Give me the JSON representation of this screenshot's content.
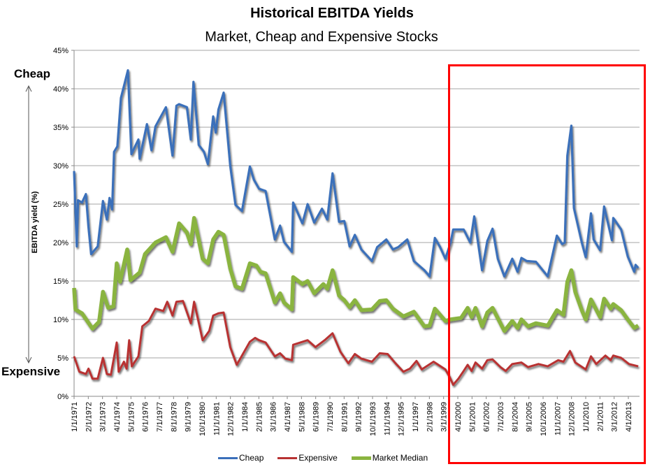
{
  "chart_data": {
    "type": "line",
    "title": "Historical EBITDA Yields",
    "subtitle": "Market, Cheap and Expensive Stocks",
    "ylabel": "EBITDA yield (%)",
    "ylim": [
      0,
      45
    ],
    "yticks": [
      "0%",
      "5%",
      "10%",
      "15%",
      "20%",
      "25%",
      "30%",
      "35%",
      "40%",
      "45%"
    ],
    "xlim": [
      1971.0,
      2014.0
    ],
    "grid": true,
    "legend_position": "bottom",
    "annotations": {
      "top": "Cheap",
      "bottom": "Expensive"
    },
    "xtick_labels": [
      "1/1/1971",
      "2/1/1972",
      "3/1/1973",
      "4/1/1974",
      "5/1/1975",
      "6/1/1976",
      "7/1/1977",
      "8/1/1978",
      "9/1/1979",
      "10/1/1980",
      "11/1/1981",
      "12/1/1982",
      "1/1/1984",
      "2/1/1985",
      "3/1/1986",
      "4/1/1987",
      "5/1/1988",
      "6/1/1989",
      "7/1/1990",
      "8/1/1991",
      "9/1/1992",
      "10/1/1993",
      "11/1/1994",
      "12/1/1995",
      "1/1/1997",
      "2/1/1998",
      "3/1/1999",
      "4/1/2000",
      "5/1/2001",
      "6/1/2002",
      "7/1/2003",
      "8/1/2004",
      "9/1/2005",
      "10/1/2006",
      "11/1/2007",
      "12/1/2008",
      "1/1/2010",
      "2/1/2011",
      "3/1/2012",
      "4/1/2013"
    ],
    "series": [
      {
        "name": "Cheap",
        "color": "#3a6fba",
        "x": [
          1971.0,
          1971.2,
          1971.3,
          1971.6,
          1971.9,
          1972.1,
          1972.3,
          1972.8,
          1973.2,
          1973.5,
          1973.7,
          1973.9,
          1974.05,
          1974.3,
          1974.57,
          1975.1,
          1975.37,
          1975.9,
          1976.0,
          1976.55,
          1976.9,
          1977.2,
          1978.0,
          1978.5,
          1978.8,
          1979.0,
          1979.6,
          1979.9,
          1980.1,
          1980.5,
          1980.9,
          1981.2,
          1981.6,
          1981.8,
          1982.0,
          1982.4,
          1982.9,
          1983.3,
          1983.8,
          1984.4,
          1984.7,
          1985.1,
          1985.6,
          1986.3,
          1986.7,
          1987.0,
          1987.6,
          1987.7,
          1988.4,
          1988.8,
          1989.3,
          1989.9,
          1990.3,
          1990.7,
          1991.2,
          1991.6,
          1992.0,
          1992.4,
          1992.9,
          1993.7,
          1994.1,
          1994.8,
          1995.3,
          1995.7,
          1996.4,
          1996.9,
          1997.7,
          1998.1,
          1998.5,
          1998.9,
          1999.3,
          1999.7,
          1999.9,
          2000.7,
          2001.2,
          2001.5,
          2002.1,
          2002.5,
          2002.9,
          2003.3,
          2003.8,
          2004.4,
          2004.8,
          2005.1,
          2005.5,
          2006.2,
          2007.1,
          2007.8,
          2008.2,
          2008.4,
          2008.6,
          2008.9,
          2009.1,
          2009.7,
          2010.0,
          2010.4,
          2010.6,
          2011.1,
          2011.4,
          2012.0,
          2012.1,
          2012.7,
          2013.2,
          2013.7,
          2013.8,
          2014.0
        ],
        "values": [
          29.3,
          19.5,
          25.5,
          25.2,
          26.3,
          22.0,
          18.5,
          19.5,
          25.4,
          23.0,
          25.8,
          24.3,
          31.8,
          32.5,
          38.8,
          42.4,
          31.5,
          33.4,
          30.9,
          35.4,
          32.0,
          35.1,
          37.6,
          31.3,
          37.8,
          38.0,
          37.6,
          33.4,
          40.9,
          32.7,
          31.8,
          30.2,
          36.4,
          34.3,
          37.3,
          39.5,
          30.0,
          24.9,
          24.1,
          29.9,
          28.2,
          27.0,
          26.7,
          20.4,
          22.2,
          20.1,
          18.8,
          25.2,
          22.5,
          25.0,
          22.6,
          24.4,
          23.0,
          29.0,
          22.7,
          22.8,
          19.5,
          21.0,
          19.1,
          17.6,
          19.4,
          20.4,
          19.1,
          19.4,
          20.4,
          17.6,
          16.4,
          15.6,
          20.6,
          19.4,
          17.9,
          20.0,
          21.7,
          21.7,
          20.0,
          23.4,
          16.4,
          20.2,
          21.8,
          17.9,
          15.6,
          17.9,
          16.2,
          18.0,
          17.6,
          17.5,
          15.6,
          20.9,
          19.8,
          20.0,
          31.3,
          35.2,
          24.5,
          20.0,
          18.1,
          23.8,
          20.4,
          19.0,
          24.7,
          20.3,
          23.2,
          21.7,
          18.2,
          16.2,
          17.1,
          16.7
        ]
      },
      {
        "name": "Expensive",
        "color": "#b83232",
        "x": [
          1971.0,
          1971.4,
          1971.9,
          1972.1,
          1972.4,
          1972.8,
          1973.2,
          1973.5,
          1973.8,
          1974.25,
          1974.4,
          1974.8,
          1975.0,
          1975.2,
          1975.4,
          1975.9,
          1976.2,
          1976.7,
          1977.2,
          1977.8,
          1978.1,
          1978.5,
          1978.8,
          1979.3,
          1979.9,
          1980.15,
          1980.8,
          1981.3,
          1981.6,
          1982.0,
          1982.4,
          1982.9,
          1983.4,
          1983.8,
          1984.4,
          1984.8,
          1985.1,
          1985.6,
          1986.3,
          1986.7,
          1987.1,
          1987.6,
          1987.7,
          1988.8,
          1989.4,
          1990.1,
          1990.7,
          1991.3,
          1991.9,
          1992.4,
          1992.9,
          1993.7,
          1994.3,
          1994.9,
          1995.5,
          1996.1,
          1996.6,
          1997.1,
          1997.5,
          1998.4,
          1999.3,
          1999.6,
          1999.9,
          2000.3,
          2000.7,
          2001.0,
          2001.3,
          2001.6,
          2002.1,
          2002.5,
          2002.9,
          2003.5,
          2003.9,
          2004.4,
          2005.1,
          2005.6,
          2006.4,
          2007.1,
          2007.9,
          2008.3,
          2008.8,
          2009.2,
          2010.0,
          2010.4,
          2010.8,
          2011.5,
          2011.9,
          2012.1,
          2012.7,
          2013.3,
          2014.0
        ],
        "values": [
          5.2,
          3.2,
          2.9,
          3.6,
          2.3,
          2.3,
          5.0,
          2.9,
          2.8,
          7.0,
          3.2,
          4.5,
          3.6,
          7.3,
          3.9,
          5.2,
          9.1,
          9.8,
          11.4,
          11.1,
          12.3,
          10.5,
          12.3,
          12.4,
          9.5,
          12.3,
          7.3,
          8.5,
          10.5,
          10.8,
          10.9,
          6.4,
          4.1,
          5.3,
          7.1,
          7.6,
          7.3,
          7.0,
          5.2,
          5.6,
          4.9,
          4.7,
          6.7,
          7.3,
          6.4,
          7.3,
          8.2,
          5.8,
          4.3,
          5.5,
          4.9,
          4.5,
          5.6,
          5.5,
          4.3,
          3.2,
          3.6,
          4.6,
          3.5,
          4.5,
          3.5,
          2.6,
          1.5,
          2.3,
          3.3,
          4.1,
          3.3,
          4.4,
          3.6,
          4.7,
          4.8,
          3.8,
          3.3,
          4.2,
          4.4,
          3.8,
          4.2,
          3.9,
          4.7,
          4.5,
          5.9,
          4.4,
          3.5,
          5.2,
          4.2,
          5.3,
          4.7,
          5.3,
          5.0,
          4.2,
          3.9
        ]
      },
      {
        "name": "Market Median",
        "color": "#8ab43f",
        "x": [
          1971.0,
          1971.1,
          1971.6,
          1972.4,
          1972.9,
          1973.2,
          1973.6,
          1974.0,
          1974.25,
          1974.5,
          1975.05,
          1975.3,
          1976.0,
          1976.4,
          1977.2,
          1978.0,
          1978.5,
          1979.0,
          1979.6,
          1979.9,
          1980.15,
          1980.8,
          1981.2,
          1981.6,
          1982.0,
          1982.4,
          1982.9,
          1983.3,
          1983.8,
          1984.4,
          1984.9,
          1985.2,
          1985.6,
          1986.3,
          1986.7,
          1987.0,
          1987.6,
          1987.7,
          1988.4,
          1988.8,
          1989.3,
          1990.0,
          1990.3,
          1990.7,
          1991.2,
          1991.6,
          1992.0,
          1992.4,
          1992.9,
          1993.7,
          1994.3,
          1994.8,
          1995.3,
          1996.1,
          1996.9,
          1997.7,
          1998.1,
          1998.5,
          1999.3,
          1999.7,
          2000.5,
          2001.0,
          2001.3,
          2001.6,
          2002.1,
          2002.5,
          2002.9,
          2003.8,
          2004.4,
          2004.8,
          2005.1,
          2005.6,
          2006.2,
          2007.1,
          2007.8,
          2008.3,
          2008.6,
          2008.9,
          2009.2,
          2009.7,
          2010.0,
          2010.4,
          2011.1,
          2011.4,
          2011.9,
          2012.1,
          2012.7,
          2013.2,
          2013.7,
          2014.0
        ],
        "values": [
          14.1,
          11.3,
          10.8,
          8.8,
          9.7,
          13.6,
          11.5,
          11.7,
          17.3,
          14.9,
          19.1,
          15.1,
          16.1,
          18.5,
          20.0,
          20.7,
          18.8,
          22.5,
          21.3,
          19.8,
          23.2,
          17.9,
          17.3,
          20.4,
          21.4,
          21.0,
          16.6,
          14.3,
          14.0,
          17.3,
          17.0,
          16.2,
          16.0,
          12.2,
          13.4,
          12.2,
          11.3,
          15.5,
          14.6,
          15.0,
          13.4,
          14.6,
          14.0,
          16.4,
          13.1,
          12.5,
          11.6,
          12.5,
          11.2,
          11.3,
          12.4,
          12.5,
          11.4,
          10.4,
          11.0,
          9.1,
          9.2,
          11.4,
          9.8,
          10.0,
          10.2,
          11.5,
          10.3,
          11.5,
          9.1,
          10.9,
          11.5,
          8.5,
          9.8,
          8.9,
          10.0,
          9.1,
          9.5,
          9.2,
          11.2,
          10.6,
          14.9,
          16.4,
          13.6,
          11.2,
          10.0,
          12.6,
          10.3,
          12.7,
          11.4,
          12.0,
          11.2,
          10.0,
          8.9,
          9.2
        ]
      }
    ]
  }
}
